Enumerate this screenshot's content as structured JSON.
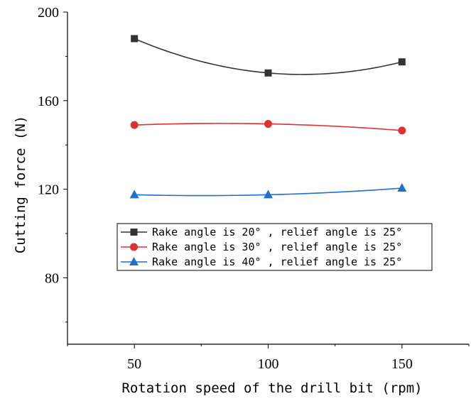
{
  "chart_data": {
    "type": "line",
    "xlabel": "Rotation speed of the drill bit (rpm)",
    "ylabel": "Cutting force (N)",
    "x": [
      50,
      100,
      150
    ],
    "xlim": [
      25,
      175
    ],
    "ylim": [
      50,
      200
    ],
    "xticks": [
      50,
      100,
      150
    ],
    "yticks": [
      80,
      120,
      160,
      200
    ],
    "grid": false,
    "legend_position": "center-left",
    "smooth": true,
    "series": [
      {
        "name": "Rake angle is 20° , relief angle is 25°",
        "values": [
          188,
          172.5,
          177.5
        ],
        "color": "#333333",
        "marker": "square"
      },
      {
        "name": "Rake angle is 30° , relief angle is 25°",
        "values": [
          149,
          149.5,
          146.5
        ],
        "color": "#e03030",
        "marker": "circle"
      },
      {
        "name": "Rake angle is 40° , relief angle is 25°",
        "values": [
          117.5,
          117.5,
          120.5
        ],
        "color": "#1f6fd1",
        "marker": "triangle"
      }
    ]
  }
}
